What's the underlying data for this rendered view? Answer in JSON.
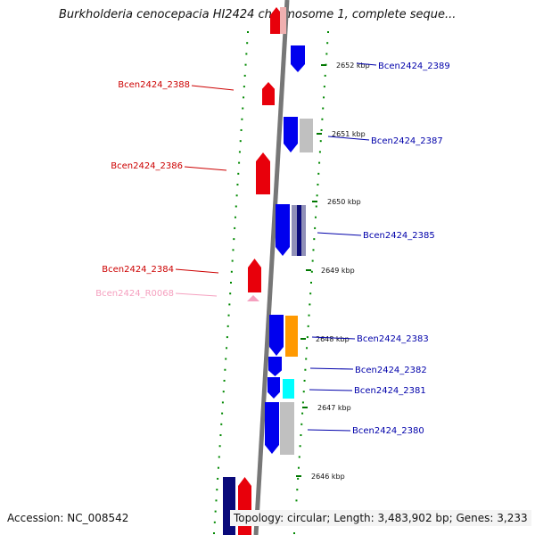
{
  "title": "Burkholderia cenocepacia HI2424 chromosome 1, complete seque...",
  "footer": {
    "accession": "Accession: NC_008542",
    "summary": "Topology: circular; Length: 3,483,902 bp; Genes: 3,233"
  },
  "colors": {
    "forward": "#e8000b",
    "reverse": "#0000ee",
    "reverse_dark": "#0a0a7a",
    "rrna": "#f5a0bf",
    "grey": "#c0c0c0",
    "orange": "#ff9900",
    "cyan": "#00ffff",
    "label_red": "#cc0000",
    "label_blue": "#0000aa",
    "label_pink": "#f5a0bf",
    "dots": "#008800",
    "backbone": "#777777"
  },
  "ticks": [
    {
      "label": "2652 kbp"
    },
    {
      "label": "2651 kbp"
    },
    {
      "label": "2650 kbp"
    },
    {
      "label": "2649 kbp"
    },
    {
      "label": "2648 kbp"
    },
    {
      "label": "2647 kbp"
    },
    {
      "label": "2646 kbp"
    }
  ],
  "gene_labels": [
    {
      "name": "Bcen2424_2389",
      "strand": "reverse"
    },
    {
      "name": "Bcen2424_2388",
      "strand": "forward"
    },
    {
      "name": "Bcen2424_2387",
      "strand": "reverse"
    },
    {
      "name": "Bcen2424_2386",
      "strand": "forward"
    },
    {
      "name": "Bcen2424_2385",
      "strand": "reverse"
    },
    {
      "name": "Bcen2424_2384",
      "strand": "forward"
    },
    {
      "name": "Bcen2424_R0068",
      "strand": "rrna"
    },
    {
      "name": "Bcen2424_2383",
      "strand": "reverse"
    },
    {
      "name": "Bcen2424_2382",
      "strand": "reverse"
    },
    {
      "name": "Bcen2424_2381",
      "strand": "reverse"
    },
    {
      "name": "Bcen2424_2380",
      "strand": "reverse"
    }
  ]
}
